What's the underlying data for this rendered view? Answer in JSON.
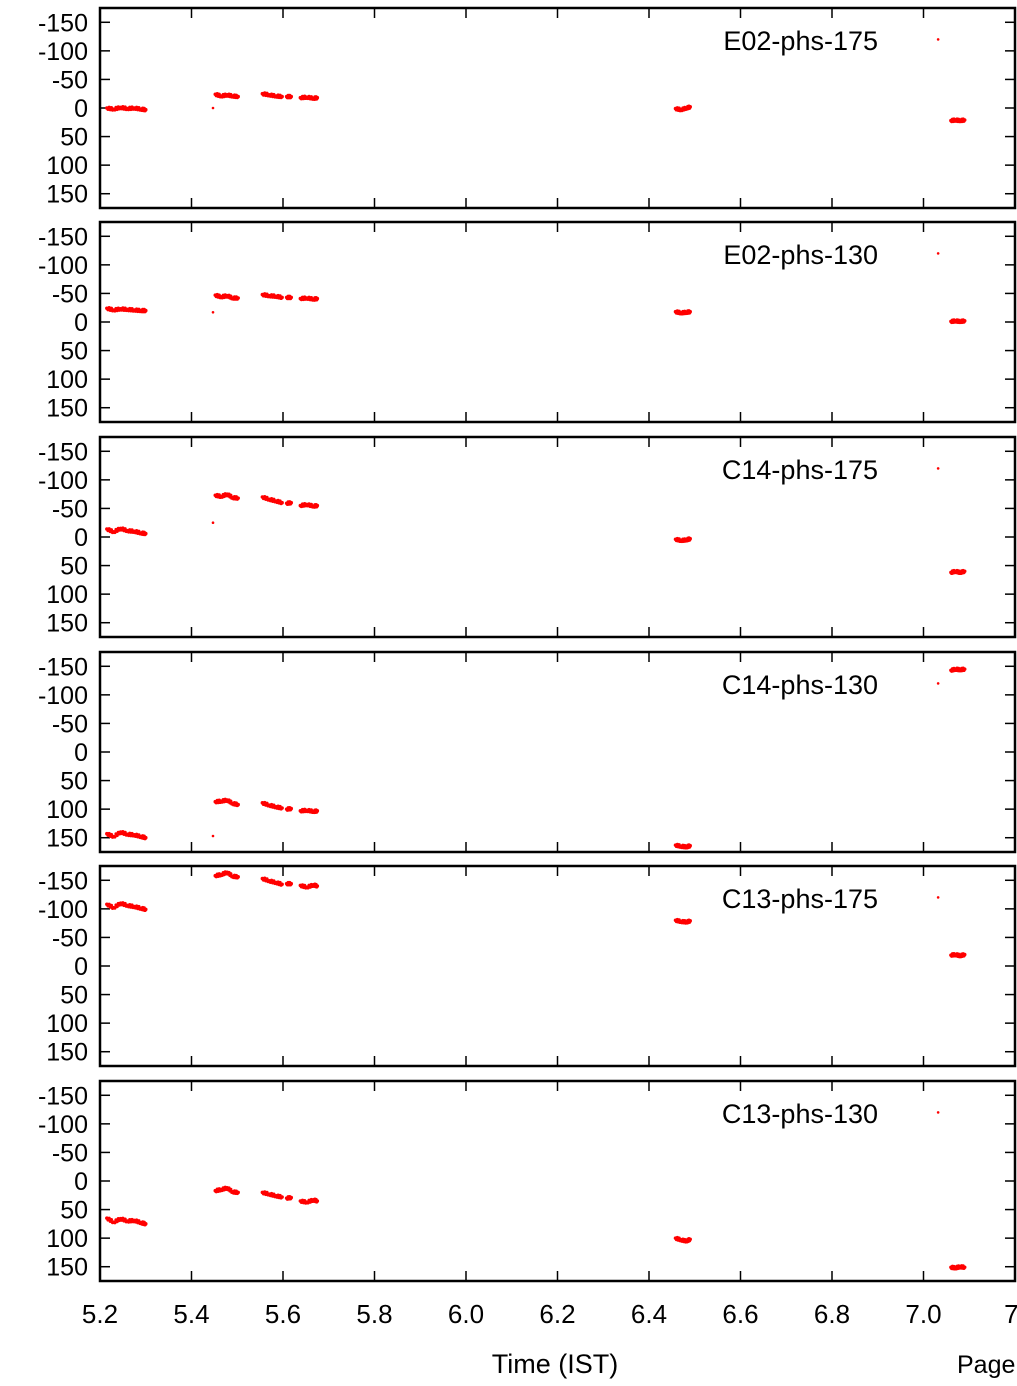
{
  "chart_data": {
    "type": "scatter",
    "xlabel": "Time (IST)",
    "footer_text": "Page",
    "xlim": [
      5.2,
      7.2
    ],
    "x_ticks": [
      "5.2",
      "5.4",
      "5.6",
      "5.8",
      "6.0",
      "6.2",
      "6.4",
      "6.6",
      "6.8",
      "7.0",
      "7."
    ],
    "ylim": [
      -175,
      175
    ],
    "y_inverted": true,
    "y_ticks": [
      "-150",
      "-100",
      "-50",
      "0",
      "50",
      "100",
      "150"
    ],
    "marker_color": "#ff0000",
    "frame_color": "#000000",
    "panels": [
      {
        "label": "E02-phs-175",
        "series": [
          {
            "x": [
              5.215,
              5.23,
              5.245,
              5.26,
              5.275,
              5.29,
              5.3
            ],
            "y": [
              0,
              2,
              -1,
              1,
              0,
              2,
              3
            ]
          },
          {
            "x": [
              5.447
            ],
            "y": [
              0
            ]
          },
          {
            "x": [
              5.452,
              5.465,
              5.478,
              5.49,
              5.502
            ],
            "y": [
              -24,
              -21,
              -23,
              -21,
              -20
            ]
          },
          {
            "x": [
              5.555,
              5.57,
              5.585,
              5.598
            ],
            "y": [
              -25,
              -23,
              -21,
              -20
            ]
          },
          {
            "x": [
              5.608,
              5.618
            ],
            "y": [
              -20,
              -20
            ]
          },
          {
            "x": [
              5.638,
              5.652,
              5.667,
              5.675
            ],
            "y": [
              -18,
              -19,
              -17,
              -18
            ]
          },
          {
            "x": [
              6.458,
              6.47,
              6.482,
              6.49
            ],
            "y": [
              1,
              3,
              0,
              -2
            ]
          },
          {
            "x": [
              7.032
            ],
            "y": [
              -120
            ]
          },
          {
            "x": [
              7.06,
              7.07,
              7.08,
              7.09
            ],
            "y": [
              22,
              21,
              22,
              21
            ]
          }
        ]
      },
      {
        "label": "E02-phs-130",
        "series": [
          {
            "x": [
              5.215,
              5.23,
              5.245,
              5.26,
              5.275,
              5.29,
              5.3
            ],
            "y": [
              -24,
              -21,
              -23,
              -22,
              -21,
              -20,
              -20
            ]
          },
          {
            "x": [
              5.447
            ],
            "y": [
              -17
            ]
          },
          {
            "x": [
              5.452,
              5.465,
              5.478,
              5.49,
              5.502
            ],
            "y": [
              -47,
              -44,
              -46,
              -42,
              -42
            ]
          },
          {
            "x": [
              5.555,
              5.57,
              5.585,
              5.598
            ],
            "y": [
              -48,
              -46,
              -45,
              -43
            ]
          },
          {
            "x": [
              5.608,
              5.618
            ],
            "y": [
              -43,
              -43
            ]
          },
          {
            "x": [
              5.638,
              5.652,
              5.667,
              5.675
            ],
            "y": [
              -41,
              -42,
              -40,
              -41
            ]
          },
          {
            "x": [
              6.458,
              6.47,
              6.482,
              6.49
            ],
            "y": [
              -18,
              -16,
              -17,
              -18
            ]
          },
          {
            "x": [
              7.032
            ],
            "y": [
              -120
            ]
          },
          {
            "x": [
              7.06,
              7.07,
              7.08,
              7.09
            ],
            "y": [
              -1,
              -2,
              -1,
              -2
            ]
          }
        ]
      },
      {
        "label": "C14-phs-175",
        "series": [
          {
            "x": [
              5.215,
              5.23,
              5.245,
              5.26,
              5.275,
              5.29,
              5.3
            ],
            "y": [
              -14,
              -9,
              -15,
              -11,
              -10,
              -7,
              -6
            ]
          },
          {
            "x": [
              5.447
            ],
            "y": [
              -25
            ]
          },
          {
            "x": [
              5.452,
              5.465,
              5.478,
              5.49,
              5.502
            ],
            "y": [
              -73,
              -71,
              -75,
              -69,
              -68
            ]
          },
          {
            "x": [
              5.555,
              5.57,
              5.585,
              5.598
            ],
            "y": [
              -70,
              -66,
              -63,
              -60
            ]
          },
          {
            "x": [
              5.608,
              5.618
            ],
            "y": [
              -59,
              -60
            ]
          },
          {
            "x": [
              5.638,
              5.652,
              5.667,
              5.675
            ],
            "y": [
              -55,
              -57,
              -54,
              -55
            ]
          },
          {
            "x": [
              6.458,
              6.47,
              6.482,
              6.49
            ],
            "y": [
              4,
              6,
              5,
              3
            ]
          },
          {
            "x": [
              7.032
            ],
            "y": [
              -120
            ]
          },
          {
            "x": [
              7.06,
              7.07,
              7.08,
              7.09
            ],
            "y": [
              62,
              60,
              62,
              60
            ]
          }
        ]
      },
      {
        "label": "C14-phs-130",
        "series": [
          {
            "x": [
              5.215,
              5.23,
              5.245,
              5.26,
              5.275,
              5.29,
              5.3
            ],
            "y": [
              143,
              148,
              140,
              144,
              145,
              148,
              150
            ]
          },
          {
            "x": [
              5.447
            ],
            "y": [
              147
            ]
          },
          {
            "x": [
              5.452,
              5.465,
              5.478,
              5.49,
              5.502
            ],
            "y": [
              87,
              86,
              84,
              90,
              92
            ]
          },
          {
            "x": [
              5.555,
              5.57,
              5.585,
              5.598
            ],
            "y": [
              89,
              93,
              96,
              98
            ]
          },
          {
            "x": [
              5.608,
              5.618
            ],
            "y": [
              100,
              99
            ]
          },
          {
            "x": [
              5.638,
              5.652,
              5.667,
              5.675
            ],
            "y": [
              103,
              102,
              104,
              103
            ]
          },
          {
            "x": [
              6.458,
              6.47,
              6.482,
              6.49
            ],
            "y": [
              163,
              165,
              166,
              164
            ]
          },
          {
            "x": [
              7.032
            ],
            "y": [
              -120
            ]
          },
          {
            "x": [
              7.06,
              7.07,
              7.08,
              7.09
            ],
            "y": [
              -143,
              -145,
              -144,
              -145
            ]
          }
        ]
      },
      {
        "label": "C13-phs-175",
        "series": [
          {
            "x": [
              5.215,
              5.23,
              5.245,
              5.26,
              5.275,
              5.29,
              5.3
            ],
            "y": [
              -108,
              -102,
              -110,
              -106,
              -104,
              -101,
              -99
            ]
          },
          {
            "x": [
              5.452,
              5.465,
              5.478,
              5.49,
              5.502
            ],
            "y": [
              -158,
              -160,
              -164,
              -157,
              -156
            ]
          },
          {
            "x": [
              5.555,
              5.57,
              5.585,
              5.598
            ],
            "y": [
              -153,
              -149,
              -146,
              -143
            ]
          },
          {
            "x": [
              5.608,
              5.618
            ],
            "y": [
              -144,
              -144
            ]
          },
          {
            "x": [
              5.638,
              5.652,
              5.667,
              5.675
            ],
            "y": [
              -141,
              -138,
              -142,
              -140
            ]
          },
          {
            "x": [
              6.458,
              6.47,
              6.482,
              6.49
            ],
            "y": [
              -80,
              -78,
              -77,
              -79
            ]
          },
          {
            "x": [
              7.032
            ],
            "y": [
              -120
            ]
          },
          {
            "x": [
              7.06,
              7.07,
              7.08,
              7.09
            ],
            "y": [
              -19,
              -20,
              -18,
              -20
            ]
          }
        ]
      },
      {
        "label": "C13-phs-130",
        "series": [
          {
            "x": [
              5.215,
              5.23,
              5.245,
              5.26,
              5.275,
              5.29,
              5.3
            ],
            "y": [
              65,
              72,
              66,
              70,
              69,
              73,
              75
            ]
          },
          {
            "x": [
              5.452,
              5.465,
              5.478,
              5.49,
              5.502
            ],
            "y": [
              17,
              15,
              12,
              19,
              20
            ]
          },
          {
            "x": [
              5.555,
              5.57,
              5.585,
              5.598
            ],
            "y": [
              20,
              23,
              26,
              28
            ]
          },
          {
            "x": [
              5.608,
              5.618
            ],
            "y": [
              30,
              29
            ]
          },
          {
            "x": [
              5.638,
              5.652,
              5.667,
              5.675
            ],
            "y": [
              35,
              37,
              33,
              35
            ]
          },
          {
            "x": [
              6.458,
              6.47,
              6.482,
              6.49
            ],
            "y": [
              100,
              103,
              105,
              102
            ]
          },
          {
            "x": [
              7.032
            ],
            "y": [
              -120
            ]
          },
          {
            "x": [
              7.06,
              7.07,
              7.08,
              7.09
            ],
            "y": [
              151,
              152,
              150,
              151
            ]
          }
        ]
      }
    ]
  }
}
